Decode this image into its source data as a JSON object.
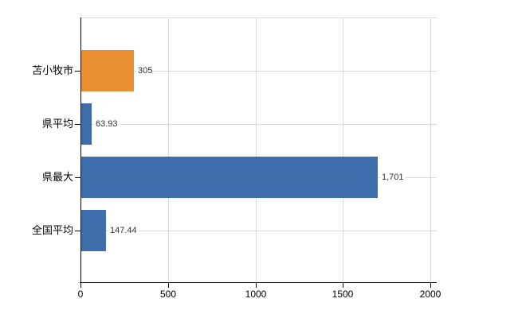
{
  "chart_data": {
    "type": "bar",
    "orientation": "horizontal",
    "title": "",
    "xlabel": "",
    "ylabel": "",
    "legend": "none",
    "grid": true,
    "categories": [
      "苫小牧市",
      "県平均",
      "県最大",
      "全国平均"
    ],
    "values": [
      305,
      63.93,
      1701,
      147.44
    ],
    "value_labels": [
      "305",
      "63.93",
      "1,701",
      "147.44"
    ],
    "bar_colors": [
      "#EA8E34",
      "#3E6EAC",
      "#3E6EAC",
      "#3E6EAC"
    ],
    "x_ticks": [
      0,
      500,
      1000,
      1500,
      2000
    ],
    "x_tick_labels": [
      "0",
      "500",
      "1000",
      "1500",
      "2000"
    ],
    "xlim": [
      0,
      2000
    ],
    "colors": {
      "grid": "#D9D9D9",
      "axis": "#000000",
      "category_text": "#000000",
      "value_text": "#333333",
      "background": "#FFFFFF"
    }
  }
}
